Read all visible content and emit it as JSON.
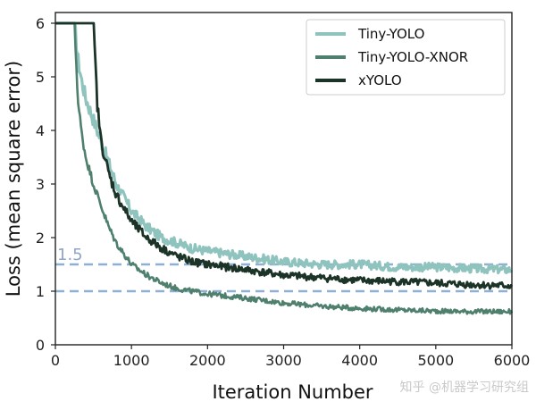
{
  "chart_data": {
    "type": "line",
    "xlabel": "Iteration Number",
    "ylabel": "Loss (mean square error)",
    "xlim": [
      0,
      6000
    ],
    "ylim": [
      0,
      6.2
    ],
    "xticks": [
      0,
      1000,
      2000,
      3000,
      4000,
      5000,
      6000
    ],
    "yticks": [
      0,
      1,
      2,
      3,
      4,
      5,
      6
    ],
    "grid": false,
    "legend_position": "top-right",
    "reference_lines": [
      {
        "y": 1.5,
        "style": "dashed",
        "color": "#8fb0d4",
        "label": "1.5"
      },
      {
        "y": 1.0,
        "style": "dashed",
        "color": "#8fb0d4",
        "label": ""
      }
    ],
    "series": [
      {
        "name": "Tiny-YOLO",
        "color": "#8fc3be",
        "x": [
          0,
          250,
          300,
          350,
          400,
          500,
          600,
          700,
          800,
          1000,
          1200,
          1400,
          1600,
          1800,
          2000,
          2500,
          3000,
          3500,
          4000,
          4500,
          5000,
          5500,
          6000
        ],
        "y": [
          6,
          6,
          5.3,
          4.9,
          4.6,
          4.2,
          3.8,
          3.4,
          3.0,
          2.5,
          2.2,
          2.0,
          1.9,
          1.8,
          1.75,
          1.65,
          1.55,
          1.5,
          1.5,
          1.45,
          1.45,
          1.42,
          1.4
        ]
      },
      {
        "name": "Tiny-YOLO-XNOR",
        "color": "#4f7f6d",
        "x": [
          0,
          250,
          300,
          350,
          400,
          500,
          600,
          700,
          800,
          1000,
          1200,
          1400,
          1600,
          1800,
          2000,
          2500,
          3000,
          3500,
          4000,
          4500,
          5000,
          5500,
          6000
        ],
        "y": [
          6,
          6,
          4.5,
          3.9,
          3.5,
          3.0,
          2.6,
          2.2,
          1.9,
          1.5,
          1.3,
          1.15,
          1.05,
          1.0,
          0.95,
          0.87,
          0.78,
          0.72,
          0.68,
          0.65,
          0.63,
          0.62,
          0.62
        ]
      },
      {
        "name": "xYOLO",
        "color": "#1c3327",
        "x": [
          0,
          500,
          550,
          600,
          700,
          800,
          1000,
          1200,
          1400,
          1600,
          1800,
          2000,
          2500,
          3000,
          3500,
          4000,
          4500,
          5000,
          5500,
          6000
        ],
        "y": [
          6,
          6,
          4.5,
          3.8,
          3.2,
          2.8,
          2.3,
          2.0,
          1.8,
          1.65,
          1.55,
          1.5,
          1.4,
          1.3,
          1.25,
          1.2,
          1.18,
          1.15,
          1.12,
          1.1
        ]
      }
    ]
  },
  "watermark": "知乎 @机器学习研究组"
}
